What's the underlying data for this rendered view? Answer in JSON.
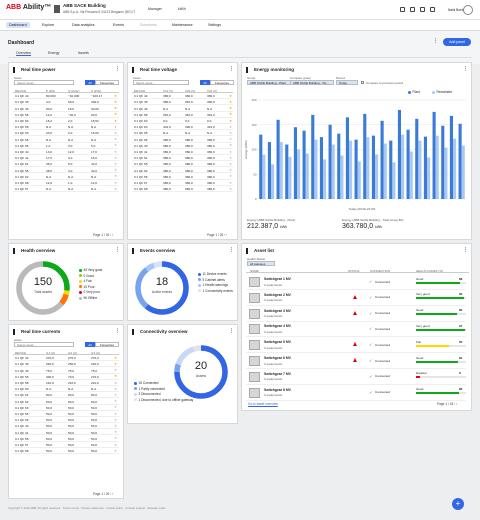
{
  "topbar": {
    "logo_prefix": "ABB",
    "logo_suffix": "Ability™",
    "building_name": "ABB SACE Building",
    "building_address": "ABB S.p.A. Via Pescaria 5 24123 Bergamo (BG) IT",
    "manager": "Manager",
    "unit": "kW/h",
    "user_name": "Nalni Boekel"
  },
  "nav": {
    "items": [
      "Dashboard",
      "Explore",
      "Data analytics",
      "Events",
      "Schedules",
      "Maintenance",
      "Settings"
    ]
  },
  "dashboard": {
    "title": "Dashboard",
    "add_panel": "Add panel",
    "tabs": [
      "Overview",
      "Energy",
      "Assets"
    ]
  },
  "real_time_power": {
    "title": "Real time power",
    "filter_label": "Asset",
    "filter_placeholder": "Select asset...",
    "seg_all": "All",
    "seg_fav": "Favourites",
    "columns": [
      "DEVICE",
      "P (kW)",
      "Q (kVAr)",
      "S (kVA)"
    ],
    "rows": [
      [
        "C1 QF 44",
        "80,000",
        "−40,000",
        "−100,17",
        "gold"
      ],
      [
        "C1 QF 45",
        "4,0",
        "69,0",
        "300,0",
        "gold"
      ],
      [
        "C1 QF 46",
        "90,0",
        "15,0",
        "40,00",
        "gold"
      ],
      [
        "C1 QF 56",
        "12,0",
        "−40,0",
        "20,0",
        "gold"
      ],
      [
        "C1 QF 60",
        "15,2",
        "2,0",
        "15,52",
        "gold"
      ],
      [
        "C1 QF 58",
        "N.A",
        "N.A",
        "N.A",
        "grey"
      ],
      [
        "C1 QF 63",
        "23,0",
        "2,0",
        "15,00",
        "grey"
      ],
      [
        "C1 QF 65",
        "N.A",
        "N.A",
        "N.A",
        "grey"
      ],
      [
        "C1 QF 66",
        "1,0",
        "3,0",
        "5,0",
        "grey"
      ],
      [
        "C1 QF 40",
        "13,0",
        "12,0",
        "17,0",
        "grey"
      ],
      [
        "C1 QF 41",
        "17,0",
        "3,0",
        "15,0",
        "grey"
      ],
      [
        "C1 QF 61",
        "35,0",
        "5,0",
        "42,0",
        "grey"
      ],
      [
        "C1 QF 55",
        "38,0",
        "3,0",
        "42,0",
        "grey"
      ],
      [
        "C1 QF 62",
        "N.A",
        "N.A",
        "N.A",
        "grey"
      ],
      [
        "C1 QF 68",
        "12,0",
        "1,0",
        "12,0",
        "grey"
      ],
      [
        "C1 QF 67",
        "N.A",
        "N.A",
        "N.A",
        "grey"
      ]
    ],
    "page_label": "Page",
    "page": "1",
    "page_total": "/ 26"
  },
  "real_time_voltage": {
    "title": "Real time voltage",
    "filter_label": "Asset",
    "filter_placeholder": "Select asset...",
    "seg_all": "All",
    "seg_fav": "Favourites",
    "columns": [
      "DEVICE",
      "V12 (V)",
      "V23 (V)",
      "V31 (V)"
    ],
    "rows": [
      [
        "C1 QF 44",
        "380,0",
        "380,0",
        "380,0",
        "gold"
      ],
      [
        "C1 QF 45",
        "380,0",
        "381,0",
        "380,0",
        "gold"
      ],
      [
        "C1 QF 46",
        "N.A",
        "N.A",
        "N.A",
        "gold"
      ],
      [
        "C1 QF 58",
        "381,0",
        "381,0",
        "381,0",
        "gold"
      ],
      [
        "C1 QF 60",
        "0,0",
        "0,0",
        "0,0",
        "gold"
      ],
      [
        "C1 QF 63",
        "401,0",
        "390,0",
        "401,0",
        "grey"
      ],
      [
        "C1 QF 65",
        "N.A",
        "N.A",
        "N.A",
        "grey"
      ],
      [
        "C1 QF 66",
        "380,0",
        "380,0",
        "380,0",
        "grey"
      ],
      [
        "C1 QF 40",
        "380,0",
        "380,0",
        "380,0",
        "grey"
      ],
      [
        "C1 QF 41",
        "380,0",
        "380,0",
        "380,0",
        "grey"
      ],
      [
        "C1 QF 61",
        "380,0",
        "380,0",
        "380,0",
        "grey"
      ],
      [
        "C1 QF 55",
        "380,0",
        "380,0",
        "380,0",
        "grey"
      ],
      [
        "C1 QF 62",
        "380,0",
        "380,0",
        "380,0",
        "grey"
      ],
      [
        "C1 QF 56",
        "380,0",
        "380,0",
        "380,0",
        "grey"
      ],
      [
        "C1 QF 67",
        "380,0",
        "380,0",
        "380,0",
        "grey"
      ],
      [
        "C1 QF 68",
        "380,0",
        "380,0",
        "380,0",
        "grey"
      ]
    ],
    "page_label": "Page",
    "page": "1",
    "page_total": "/ 26"
  },
  "energy_monitoring": {
    "title": "Energy monitoring",
    "group_label": "Group",
    "group_value": "ABB SACE Building - Plant",
    "compare_label": "Compare group",
    "compare_value": "ABB SACE Building - Tot...",
    "period_label": "Period",
    "period_value": "Today",
    "compare_check": "Compare to previous period",
    "legend_a": "Plant",
    "legend_b": "Remainder",
    "total_a_label": "Energy (ABB SACE Building - Plant)",
    "total_a_value": "212.387,0",
    "total_a_unit": "kWh",
    "total_b_label": "Energy (ABB SACE Building - Total Group B2)",
    "total_b_value": "363.780,0",
    "total_b_unit": "kWh"
  },
  "chart_data": {
    "type": "bar",
    "ylabel": "Energy (kWh)",
    "xlabel": "Today (00:00-24:00)",
    "ylim": [
      0,
      200
    ],
    "categories": [
      "",
      "",
      "",
      "",
      "",
      "",
      "",
      "",
      "",
      "",
      "",
      "",
      "",
      "",
      "",
      "",
      "",
      "",
      "",
      "",
      "",
      "",
      "",
      ""
    ],
    "series": [
      {
        "name": "Plant",
        "color": "#3a7bd5",
        "values": [
          130,
          115,
          160,
          110,
          145,
          138,
          170,
          125,
          150,
          132,
          165,
          120,
          172,
          128,
          158,
          118,
          180,
          140,
          162,
          126,
          176,
          148,
          168,
          152
        ]
      },
      {
        "name": "Remainder",
        "color": "#a9c8f4",
        "values": [
          90,
          70,
          115,
          85,
          100,
          92,
          120,
          80,
          110,
          88,
          118,
          76,
          125,
          90,
          112,
          74,
          130,
          96,
          118,
          84,
          128,
          104,
          122,
          108
        ]
      }
    ]
  },
  "health_overview": {
    "title": "Health overview",
    "total": "150",
    "total_label": "Total assets",
    "segments": [
      {
        "label": "40 Very good",
        "value": 40,
        "color": "#0ca919"
      },
      {
        "label": "0 Good",
        "value": 0,
        "color": "#7ed321"
      },
      {
        "label": "4 Fair",
        "value": 4,
        "color": "#ffd800"
      },
      {
        "label": "10 Poor",
        "value": 10,
        "color": "#ff7300"
      },
      {
        "label": "0 Very poor",
        "value": 0,
        "color": "#e2001a"
      },
      {
        "label": "96 Offline",
        "value": 96,
        "color": "#bababa"
      }
    ]
  },
  "events_overview": {
    "title": "Events overview",
    "total": "18",
    "total_label": "Active events",
    "segments": [
      {
        "label": "11 Device events",
        "value": 11,
        "color": "#3266e3"
      },
      {
        "label": "5 Cabinet alerts",
        "value": 5,
        "color": "#77a3f1"
      },
      {
        "label": "1 Health warnings",
        "value": 1,
        "color": "#aac6f7"
      },
      {
        "label": "1 Connectivity events",
        "value": 1,
        "color": "#d7e3fb"
      }
    ]
  },
  "asset_list": {
    "title": "Asset list",
    "filter_label": "Health Status",
    "filter_value": "All statuses",
    "columns": [
      "NAME",
      "STATUS",
      "CONNECTION",
      "HEALTH INDEX (%)"
    ],
    "rows": [
      {
        "name": "Switchgear 1 MV",
        "sub": "3 equipments",
        "warn": false,
        "conn": "Connected",
        "health_label": "Good",
        "health": "88",
        "color": "#0ca919"
      },
      {
        "name": "Switchgear 2 MV",
        "sub": "3 equipments",
        "warn": true,
        "conn": "Connected",
        "health_label": "Very good",
        "health": "95",
        "color": "#0ca919"
      },
      {
        "name": "Switchgear 3 MV",
        "sub": "3 equipments",
        "warn": true,
        "conn": "Connected",
        "health_label": "Good",
        "health": "82",
        "color": "#0ca919"
      },
      {
        "name": "Switchgear 4 MV",
        "sub": "3 equipments",
        "warn": false,
        "conn": "Connected",
        "health_label": "Very good",
        "health": "97",
        "color": "#0ca919"
      },
      {
        "name": "Switchgear 5 MV",
        "sub": "3 equipments",
        "warn": true,
        "conn": "Connected",
        "health_label": "Fair",
        "health": "65",
        "color": "#ffd800"
      },
      {
        "name": "Switchgear 6 MV",
        "sub": "3 equipments",
        "warn": true,
        "conn": "Connected",
        "health_label": "Good",
        "health": "84",
        "color": "#0ca919"
      },
      {
        "name": "Switchgear 7 MV",
        "sub": "3 equipments",
        "warn": false,
        "conn": "Connected",
        "health_label": "Disaster",
        "health": "8",
        "color": "#e2001a"
      },
      {
        "name": "Switchgear 8 MV",
        "sub": "3 equipments",
        "warn": false,
        "conn": "Connected",
        "health_label": "Good",
        "health": "86",
        "color": "#0ca919"
      }
    ],
    "link": "Go to asset overview",
    "page_label": "Page",
    "page": "1",
    "page_total": "/ 18"
  },
  "real_time_currents": {
    "title": "Real time currents",
    "filter_label": "Asset",
    "filter_placeholder": "Select asset...",
    "seg_all": "All",
    "seg_fav": "Favourites",
    "columns": [
      "DEVICE",
      "IL1 (A)",
      "IL2 (A)",
      "IL3 (A)"
    ],
    "rows": [
      [
        "C1 QF 44",
        "270,0",
        "270,0",
        "270,0",
        "gold"
      ],
      [
        "C1 QF 45",
        "240,0",
        "250,0",
        "240,0",
        "gold"
      ],
      [
        "C1 QF 46",
        "75,0",
        "75,0",
        "75,0",
        "grey"
      ],
      [
        "C1 QF 56",
        "400,0",
        "70,0",
        "270,0",
        "gold"
      ],
      [
        "C1 QF 58",
        "210,0",
        "210,0",
        "210,0",
        "grey"
      ],
      [
        "C1 QF 60",
        "N.A",
        "N.A",
        "N.A",
        "grey"
      ],
      [
        "C1 QF 61",
        "80,0",
        "80,0",
        "80,0",
        "grey"
      ],
      [
        "C1 QF 62",
        "60,0",
        "60,0",
        "60,0",
        "grey"
      ],
      [
        "C1 QF 63",
        "50,0",
        "50,0",
        "50,0",
        "grey"
      ],
      [
        "C1 QF 65",
        "50,0",
        "50,0",
        "50,0",
        "grey"
      ],
      [
        "C1 QF 66",
        "50,0",
        "50,0",
        "50,0",
        "grey"
      ],
      [
        "C1 QF 40",
        "50,0",
        "50,0",
        "50,0",
        "grey"
      ],
      [
        "C1 QF 41",
        "50,0",
        "50,0",
        "50,0",
        "grey"
      ],
      [
        "C1 QF 55",
        "50,0",
        "50,0",
        "50,0",
        "grey"
      ],
      [
        "C1 QF 67",
        "50,0",
        "50,0",
        "50,0",
        "grey"
      ],
      [
        "C1 QF 68",
        "50,0",
        "50,0",
        "50,0",
        "grey"
      ]
    ],
    "page_label": "Page",
    "page": "1",
    "page_total": "/ 26"
  },
  "connectivity_overview": {
    "title": "Connectivity overview",
    "total": "20",
    "total_label": "Assets",
    "segments": [
      {
        "label": "15 Connected",
        "value": 15,
        "color": "#3266e3"
      },
      {
        "label": "1 Partly connected",
        "value": 1,
        "color": "#77a3f1"
      },
      {
        "label": "3 Disconnected",
        "value": 3,
        "color": "#c8d9f8"
      },
      {
        "label": "1 Disconnected, due to offline gateway",
        "value": 1,
        "color": "#e4e4e4"
      }
    ]
  },
  "footer": {
    "text": "Copyright © 2022 ABB. All rights reserved. · Terms of use · Privacy statement · Cookie policy · Contact support · Release notes"
  }
}
